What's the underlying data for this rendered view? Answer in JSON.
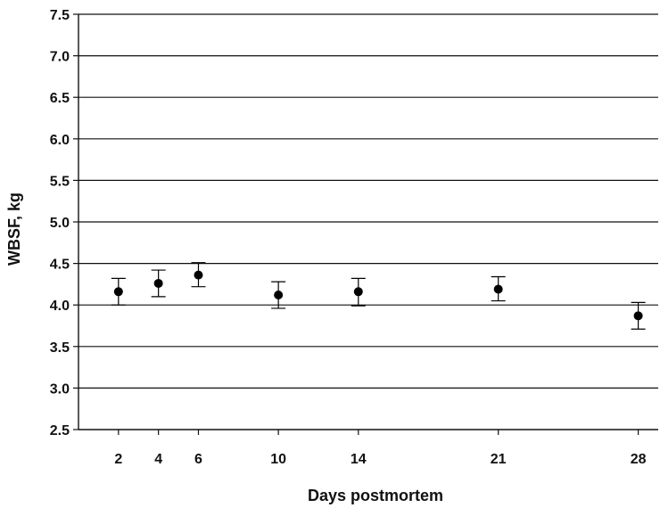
{
  "chart_data": {
    "type": "scatter",
    "xlabel": "Days postmortem",
    "ylabel": "WBSF, kg",
    "ylim": [
      2.5,
      7.5
    ],
    "xlim": [
      0,
      29
    ],
    "y_ticks": [
      "2.5",
      "3.0",
      "3.5",
      "4.0",
      "4.5",
      "5.0",
      "5.5",
      "6.0",
      "6.5",
      "7.0",
      "7.5"
    ],
    "x_ticks": [
      "2",
      "4",
      "6",
      "10",
      "14",
      "21",
      "28"
    ],
    "grid": "horizontal",
    "legend": "none",
    "colors": {
      "axis": "#111111",
      "grid": "#111111",
      "marker": "#000000"
    },
    "points": [
      {
        "x": 2,
        "y": 4.16,
        "err_low": 4.0,
        "err_high": 4.32
      },
      {
        "x": 4,
        "y": 4.26,
        "err_low": 4.1,
        "err_high": 4.42
      },
      {
        "x": 6,
        "y": 4.36,
        "err_low": 4.22,
        "err_high": 4.51
      },
      {
        "x": 10,
        "y": 4.12,
        "err_low": 3.96,
        "err_high": 4.28
      },
      {
        "x": 14,
        "y": 4.16,
        "err_low": 3.99,
        "err_high": 4.32
      },
      {
        "x": 21,
        "y": 4.19,
        "err_low": 4.05,
        "err_high": 4.34
      },
      {
        "x": 28,
        "y": 3.87,
        "err_low": 3.71,
        "err_high": 4.03
      }
    ]
  }
}
